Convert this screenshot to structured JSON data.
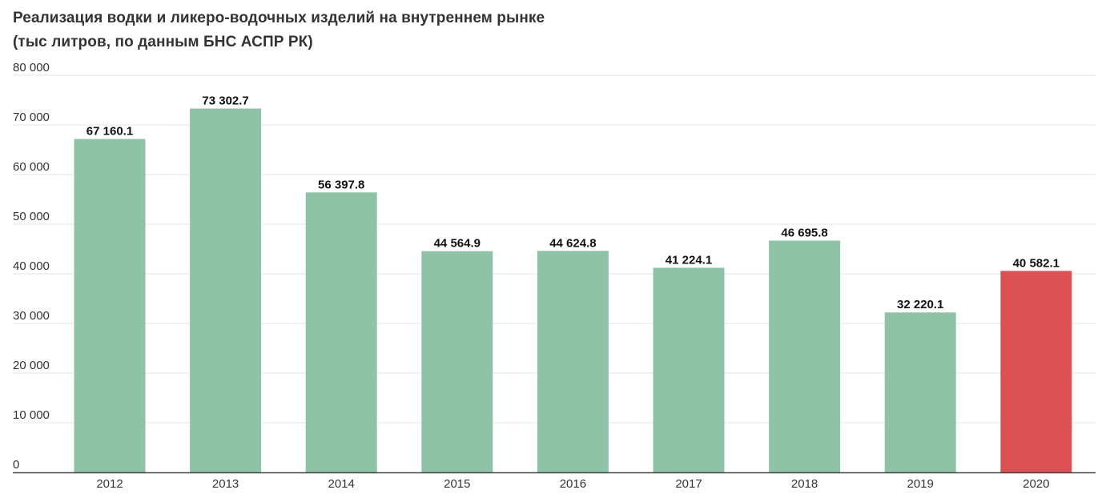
{
  "chart_data": {
    "type": "bar",
    "title": "Реализация водки и ликеро-водочных изделий на внутреннем рынке",
    "subtitle": "(тыс литров, по данным БНС АСПР РК)",
    "categories": [
      "2012",
      "2013",
      "2014",
      "2015",
      "2016",
      "2017",
      "2018",
      "2019",
      "2020"
    ],
    "values": [
      67160.1,
      73302.7,
      56397.8,
      44564.9,
      44624.8,
      41224.1,
      46695.8,
      32220.1,
      40582.1
    ],
    "value_labels": [
      "67 160.1",
      "73 302.7",
      "56 397.8",
      "44 564.9",
      "44 624.8",
      "41 224.1",
      "46 695.8",
      "32 220.1",
      "40 582.1"
    ],
    "ylim": [
      0,
      80000
    ],
    "yticks": [
      0,
      10000,
      20000,
      30000,
      40000,
      50000,
      60000,
      70000,
      80000
    ],
    "ytick_labels": [
      "0",
      "10 000",
      "20 000",
      "30 000",
      "40 000",
      "50 000",
      "60 000",
      "70 000",
      "80 000"
    ],
    "xlabel": "",
    "ylabel": "",
    "grid": true,
    "legend": "none",
    "colors": {
      "default": "#8fc3a8",
      "highlight": "#dc5254",
      "highlight_category": "2020"
    }
  }
}
